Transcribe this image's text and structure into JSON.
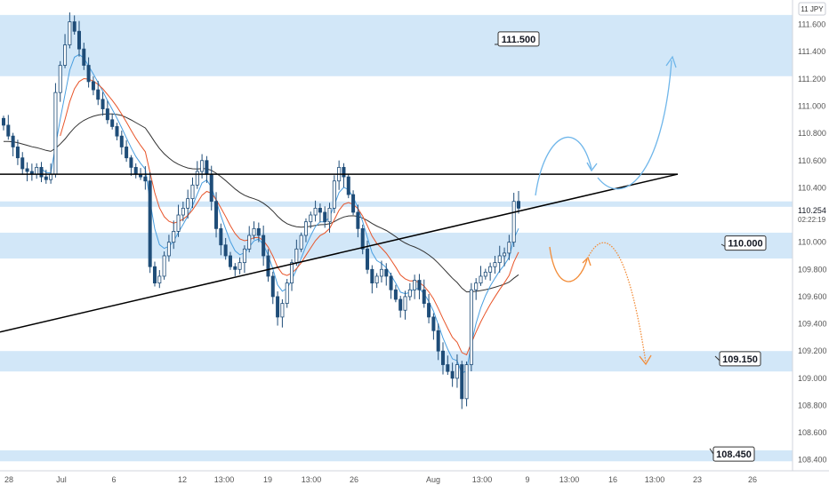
{
  "chart_data": {
    "type": "candlestick",
    "symbol_badge": "11 JPY",
    "x_ticks": [
      "28",
      "Jul",
      "6",
      "12",
      "13:00",
      "19",
      "13:00",
      "26",
      "Aug",
      "13:00",
      "9",
      "13:00",
      "16",
      "13:00",
      "23",
      "26"
    ],
    "y_ticks": [
      "111.600",
      "111.400",
      "111.200",
      "111.000",
      "110.800",
      "110.600",
      "110.400",
      "110.000",
      "109.800",
      "109.600",
      "109.400",
      "109.200",
      "109.000",
      "108.800",
      "108.600",
      "108.400"
    ],
    "ylim": [
      108.32,
      111.78
    ],
    "grid": false,
    "current_price": {
      "price": "110.254",
      "countdown": "02:22:19",
      "value": 110.254
    },
    "zones": [
      {
        "low": 111.22,
        "high": 111.67
      },
      {
        "low": 110.26,
        "high": 110.3
      },
      {
        "low": 109.88,
        "high": 110.07
      },
      {
        "low": 109.05,
        "high": 109.2
      },
      {
        "low": 108.39,
        "high": 108.47
      }
    ],
    "level_labels": [
      {
        "label": "111.500",
        "value": 111.5
      },
      {
        "label": "110.000",
        "value": 110.0
      },
      {
        "label": "109.150",
        "value": 109.15
      },
      {
        "label": "108.450",
        "value": 108.45
      }
    ],
    "horizontal_line": 110.5,
    "trendline": [
      {
        "x": 0,
        "y": 109.34
      },
      {
        "x": 762,
        "y": 110.5
      }
    ],
    "closes": [
      110.86,
      110.78,
      110.7,
      110.62,
      110.54,
      110.52,
      110.5,
      110.55,
      110.48,
      110.46,
      110.5,
      111.1,
      111.3,
      111.45,
      111.62,
      111.55,
      111.42,
      111.3,
      111.18,
      111.12,
      111.05,
      110.98,
      110.9,
      110.85,
      110.78,
      110.7,
      110.62,
      110.55,
      110.5,
      110.48,
      110.45,
      109.82,
      109.7,
      109.75,
      109.9,
      110.0,
      110.08,
      110.2,
      110.25,
      110.32,
      110.42,
      110.52,
      110.6,
      110.5,
      110.3,
      110.1,
      109.98,
      109.9,
      109.82,
      109.8,
      109.85,
      109.95,
      110.05,
      110.1,
      110.05,
      109.9,
      109.75,
      109.6,
      109.45,
      109.55,
      109.7,
      109.85,
      109.95,
      110.05,
      110.15,
      110.2,
      110.25,
      110.22,
      110.15,
      110.25,
      110.45,
      110.55,
      110.48,
      110.35,
      110.22,
      110.1,
      109.95,
      109.8,
      109.7,
      109.75,
      109.8,
      109.75,
      109.65,
      109.58,
      109.5,
      109.6,
      109.65,
      109.72,
      109.65,
      109.55,
      109.45,
      109.35,
      109.2,
      109.1,
      109.05,
      109.0,
      109.1,
      108.85,
      109.1,
      109.65,
      109.7,
      109.75,
      109.78,
      109.82,
      109.85,
      109.9,
      109.92,
      110.0,
      110.3,
      110.25
    ]
  }
}
